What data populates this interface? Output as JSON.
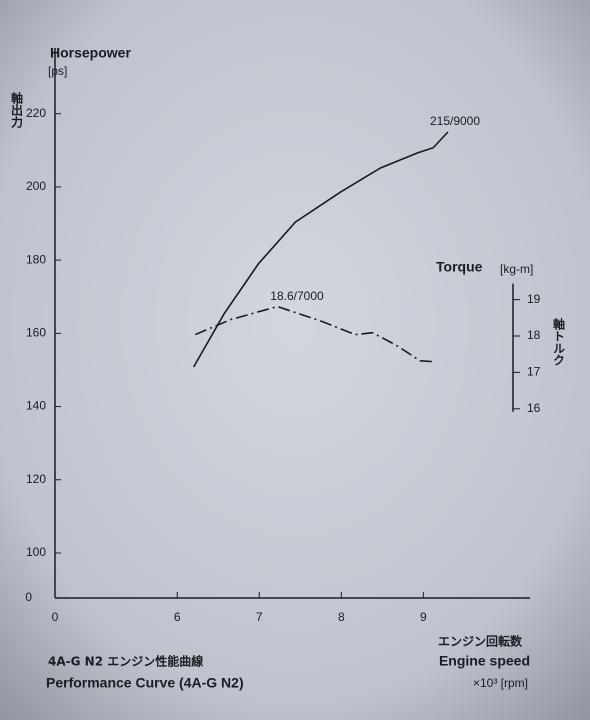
{
  "chart_data": {
    "type": "line",
    "y_label": "Horsepower",
    "y_unit": "[ps]",
    "y_label_jp": "軸出力",
    "y2_label": "Torque",
    "y2_unit": "[kg-m]",
    "y2_label_jp": "軸トルク",
    "x_label_jp": "エンジン回転数",
    "x_label": "Engine speed",
    "x_unit": "×10³ [rpm]",
    "caption_jp": "4A-G N2 エンジン性能曲線",
    "caption": "Performance Curve (4A-G N2)",
    "x_origin_label": "0",
    "y_origin_label": "0",
    "annotations": [
      "215/9000",
      "18.6/7000"
    ],
    "xlim": [
      4.51,
      10.3
    ],
    "xticks": [
      6,
      7,
      8,
      9
    ],
    "ylim": [
      87.7,
      237.4
    ],
    "yticks": [
      100,
      120,
      140,
      160,
      180,
      200,
      220
    ],
    "y2lim": [
      10.8,
      25.86
    ],
    "y2ticks": [
      16,
      17,
      18,
      19
    ],
    "series": [
      {
        "color": "#1a1a1a",
        "dash": "solid",
        "x": [
          6.2,
          6.57,
          6.99,
          7.44,
          7.99,
          8.48,
          8.93,
          9.12,
          9.3
        ],
        "values": [
          150.8,
          165.3,
          179.0,
          190.4,
          198.6,
          205.2,
          209.3,
          210.7,
          215.0
        ]
      },
      {
        "color": "#1a1a1a",
        "dash": "dashdot",
        "axis": "y2",
        "x": [
          6.22,
          6.65,
          7.22,
          7.74,
          8.17,
          8.38,
          8.66,
          8.96,
          9.15
        ],
        "values": [
          18.04,
          18.45,
          18.81,
          18.42,
          18.04,
          18.09,
          17.76,
          17.32,
          17.29
        ]
      }
    ]
  }
}
